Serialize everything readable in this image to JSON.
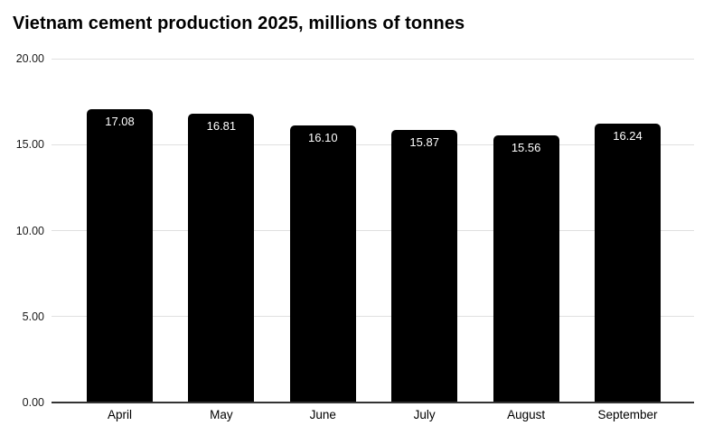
{
  "title": "Vietnam cement production 2025, millions of tonnes",
  "chart_data": {
    "type": "bar",
    "title": "Vietnam cement production 2025, millions of tonnes",
    "categories": [
      "April",
      "May",
      "June",
      "July",
      "August",
      "September"
    ],
    "values": [
      17.08,
      16.81,
      16.1,
      15.87,
      15.56,
      16.24
    ],
    "value_labels": [
      "17.08",
      "16.81",
      "16.10",
      "15.87",
      "15.56",
      "16.24"
    ],
    "xlabel": "",
    "ylabel": "",
    "ylim": [
      0,
      20
    ],
    "yticks": [
      0,
      5,
      10,
      15,
      20
    ],
    "ytick_labels": [
      "0.00",
      "5.00",
      "10.00",
      "15.00",
      "20.00"
    ],
    "grid": true,
    "legend": false,
    "colors": {
      "bar": "#000000",
      "bar_value_text": "#ffffff",
      "gridline": "#e0e0e0",
      "axis_line": "#333333",
      "tick_text": "#1a1a1a",
      "title_text": "#000000",
      "background": "#ffffff"
    }
  }
}
